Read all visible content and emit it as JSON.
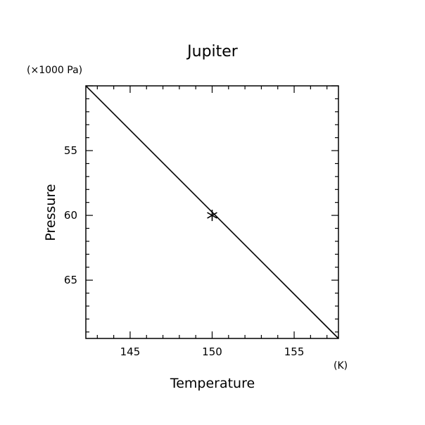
{
  "chart_data": {
    "type": "line",
    "title": "Jupiter",
    "xlabel": "Temperature",
    "ylabel": "Pressure",
    "x_unit": "(K)",
    "y_unit": "(×1000 Pa)",
    "xlim": [
      142.3,
      157.7
    ],
    "ylim": [
      69.5,
      50.0
    ],
    "y_inverted": true,
    "xticks": [
      145,
      150,
      155
    ],
    "yticks": [
      55,
      60,
      65
    ],
    "grid": false,
    "series": [
      {
        "style": "line",
        "points": [
          [
            142.3,
            50.0
          ],
          [
            157.7,
            69.5
          ]
        ]
      },
      {
        "style": "marker",
        "marker": "asterisk",
        "points": [
          [
            150.0,
            60.0
          ]
        ]
      }
    ]
  }
}
